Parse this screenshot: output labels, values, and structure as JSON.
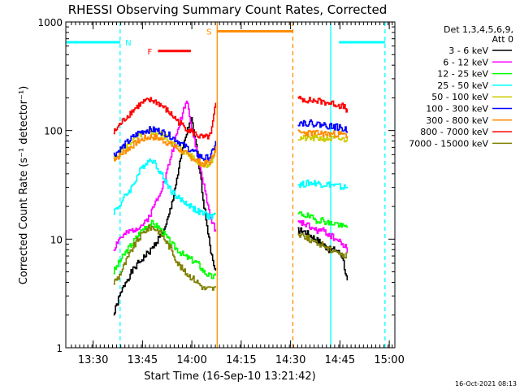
{
  "chart_data": {
    "type": "line",
    "title": "RHESSI Observing Summary Count Rates, Corrected",
    "xlabel": "Start Time (16-Sep-10 13:21:42)",
    "ylabel": "Corrected Count Rate (s⁻¹ detector⁻¹)",
    "x_unit": "minutes since 13:21:42",
    "xlim": [
      0,
      100
    ],
    "ylim": [
      1,
      1000
    ],
    "yscale": "log",
    "xticks": [
      {
        "pos": 8.3,
        "label": "13:30"
      },
      {
        "pos": 23.3,
        "label": "13:45"
      },
      {
        "pos": 38.3,
        "label": "14:00"
      },
      {
        "pos": 53.3,
        "label": "14:15"
      },
      {
        "pos": 68.3,
        "label": "14:30"
      },
      {
        "pos": 83.3,
        "label": "14:45"
      },
      {
        "pos": 98.3,
        "label": "15:00"
      }
    ],
    "yticks": [
      {
        "value": 1,
        "label": "1"
      },
      {
        "value": 10,
        "label": "10"
      },
      {
        "value": 100,
        "label": "100"
      },
      {
        "value": 1000,
        "label": "1000"
      }
    ],
    "legend": {
      "position": "right",
      "header": [
        "Det 1,3,4,5,6,9,",
        "Att 0"
      ]
    },
    "series": [
      {
        "name": "3 - 6 keV",
        "color": "#000000",
        "x": [
          14.5,
          16,
          18,
          20,
          22,
          24,
          26,
          28,
          30,
          32,
          34,
          36,
          38,
          40,
          42,
          44,
          45.5
        ],
        "y": [
          2,
          2.8,
          4,
          5,
          6,
          7,
          8,
          10,
          12,
          20,
          40,
          80,
          130,
          60,
          20,
          8,
          5
        ],
        "x2": [
          70.5,
          72,
          74,
          76,
          78,
          80,
          82,
          84,
          85.5
        ],
        "y2": [
          12,
          12,
          11,
          10,
          9,
          8,
          8,
          7,
          4
        ]
      },
      {
        "name": "6 - 12 keV",
        "color": "#ff00ff",
        "x": [
          14.5,
          16,
          18,
          20,
          22,
          24,
          26,
          28,
          30,
          32,
          34,
          36,
          37,
          38,
          39,
          40,
          42,
          44,
          45.5
        ],
        "y": [
          8,
          10,
          11,
          12,
          13,
          14,
          18,
          25,
          35,
          60,
          100,
          170,
          190,
          110,
          80,
          60,
          30,
          15,
          12
        ],
        "x2": [
          70.5,
          72,
          74,
          76,
          78,
          80,
          82,
          84,
          85.5
        ],
        "y2": [
          14,
          14,
          13,
          12,
          12,
          11,
          10,
          9,
          8
        ]
      },
      {
        "name": "12 - 25 keV",
        "color": "#00ff00",
        "x": [
          14.5,
          16,
          18,
          20,
          22,
          24,
          26,
          28,
          30,
          32,
          34,
          36,
          38,
          40,
          42,
          44,
          45.5
        ],
        "y": [
          5,
          6,
          7.5,
          9,
          11,
          13,
          14,
          13,
          11,
          9,
          8,
          7,
          6.5,
          6,
          5,
          4.5,
          4.5
        ],
        "x2": [
          70.5,
          72,
          74,
          76,
          78,
          80,
          82,
          84,
          85.5
        ],
        "y2": [
          17,
          17,
          16,
          15,
          15,
          14,
          14,
          13,
          13
        ]
      },
      {
        "name": "25 - 50 keV",
        "color": "#00ffff",
        "x": [
          14.5,
          16,
          18,
          20,
          22,
          24,
          26,
          28,
          30,
          32,
          34,
          36,
          38,
          40,
          42,
          44,
          45.5
        ],
        "y": [
          18,
          20,
          25,
          30,
          40,
          50,
          55,
          45,
          35,
          28,
          24,
          22,
          20,
          18,
          17,
          16,
          17
        ],
        "x2": [
          70.5,
          72,
          74,
          76,
          78,
          80,
          82,
          84,
          85.5
        ],
        "y2": [
          32,
          32,
          33,
          33,
          32,
          32,
          31,
          30,
          30
        ]
      },
      {
        "name": "50 - 100 keV",
        "color": "#cccc00",
        "x": [
          14.5,
          16,
          18,
          20,
          22,
          24,
          26,
          28,
          30,
          32,
          34,
          36,
          38,
          40,
          42,
          44,
          45.5
        ],
        "y": [
          55,
          60,
          70,
          80,
          90,
          95,
          98,
          95,
          88,
          78,
          70,
          63,
          58,
          52,
          48,
          50,
          70
        ],
        "x2": [
          70.5,
          72,
          74,
          76,
          78,
          80,
          82,
          84,
          85.5
        ],
        "y2": [
          85,
          85,
          85,
          85,
          85,
          84,
          84,
          83,
          82
        ]
      },
      {
        "name": "100 - 300 keV",
        "color": "#0000ff",
        "x": [
          14.5,
          16,
          18,
          20,
          22,
          24,
          26,
          28,
          30,
          32,
          34,
          36,
          38,
          40,
          42,
          44,
          45.5
        ],
        "y": [
          60,
          65,
          75,
          85,
          95,
          100,
          102,
          100,
          95,
          88,
          80,
          72,
          66,
          60,
          55,
          58,
          78
        ],
        "x2": [
          70.5,
          72,
          74,
          76,
          78,
          80,
          82,
          84,
          85.5
        ],
        "y2": [
          118,
          118,
          117,
          115,
          113,
          110,
          108,
          104,
          100
        ]
      },
      {
        "name": "300 - 800 keV",
        "color": "#ff8c00",
        "x": [
          14.5,
          16,
          18,
          20,
          22,
          24,
          26,
          28,
          30,
          32,
          34,
          36,
          38,
          40,
          42,
          44,
          45.5
        ],
        "y": [
          55,
          58,
          65,
          72,
          80,
          85,
          88,
          85,
          80,
          74,
          68,
          62,
          57,
          52,
          49,
          52,
          70
        ],
        "x2": [
          70.5,
          72,
          74,
          76,
          78,
          80,
          82,
          84,
          85.5
        ],
        "y2": [
          95,
          95,
          95,
          94,
          94,
          93,
          93,
          92,
          90
        ]
      },
      {
        "name": "800 - 7000 keV",
        "color": "#ff0000",
        "x": [
          14.5,
          16,
          18,
          20,
          22,
          24,
          26,
          28,
          30,
          32,
          34,
          36,
          38,
          40,
          42,
          44,
          45.5
        ],
        "y": [
          95,
          110,
          130,
          150,
          170,
          185,
          190,
          180,
          160,
          140,
          122,
          108,
          98,
          90,
          85,
          90,
          175
        ],
        "x2": [
          70.5,
          72,
          74,
          76,
          78,
          80,
          82,
          84,
          85.5
        ],
        "y2": [
          195,
          195,
          190,
          188,
          185,
          180,
          175,
          168,
          155
        ]
      },
      {
        "name": "7000 - 15000 keV",
        "color": "#808000",
        "x": [
          14.5,
          16,
          18,
          20,
          22,
          24,
          26,
          28,
          30,
          32,
          34,
          36,
          38,
          40,
          42,
          44,
          45.5
        ],
        "y": [
          4,
          4.5,
          6,
          8,
          10,
          12,
          13,
          12,
          10,
          8,
          6,
          5,
          4.5,
          4,
          3.5,
          3.5,
          3.5
        ],
        "x2": [
          70.5,
          72,
          74,
          76,
          78,
          80,
          82,
          84,
          85.5
        ],
        "y2": [
          11,
          11,
          10,
          9,
          9,
          8,
          8,
          7,
          7
        ]
      }
    ],
    "state_bars": [
      {
        "label": "N",
        "color": "#00ffff",
        "y": 650,
        "segments": [
          [
            0,
            16.5
          ],
          [
            83,
            97
          ]
        ]
      },
      {
        "label": "F",
        "color": "#ff0000",
        "y": 540,
        "segments": [
          [
            28,
            38
          ]
        ]
      },
      {
        "label": "S",
        "color": "#ff8c00",
        "y": 820,
        "segments": [
          [
            46,
            69
          ]
        ]
      }
    ],
    "vlines": [
      {
        "x": 16.5,
        "color": "#00ffff",
        "style": "dashed"
      },
      {
        "x": 46,
        "color": "#ff8c00",
        "style": "solid"
      },
      {
        "x": 69,
        "color": "#ff8c00",
        "style": "dashed"
      },
      {
        "x": 80.5,
        "color": "#00ffff",
        "style": "solid"
      },
      {
        "x": 97,
        "color": "#00ffff",
        "style": "dashed"
      }
    ],
    "footer_stamp": "16-Oct-2021 08:13"
  }
}
